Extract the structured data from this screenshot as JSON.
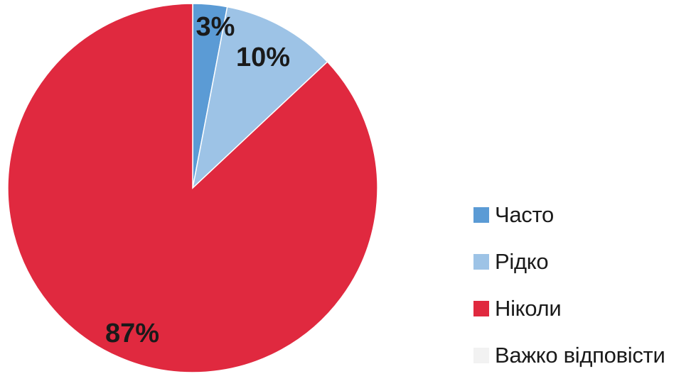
{
  "chart_data": {
    "type": "pie",
    "categories": [
      "Часто",
      "Рідко",
      "Ніколи",
      "Важко відповісти"
    ],
    "values": [
      3,
      10,
      87,
      0
    ],
    "data_labels": [
      "3%",
      "10%",
      "87%",
      ""
    ],
    "colors": [
      "#5b9bd5",
      "#9dc3e6",
      "#e0293f",
      "#f2f2f2"
    ],
    "legend_position": "right"
  }
}
